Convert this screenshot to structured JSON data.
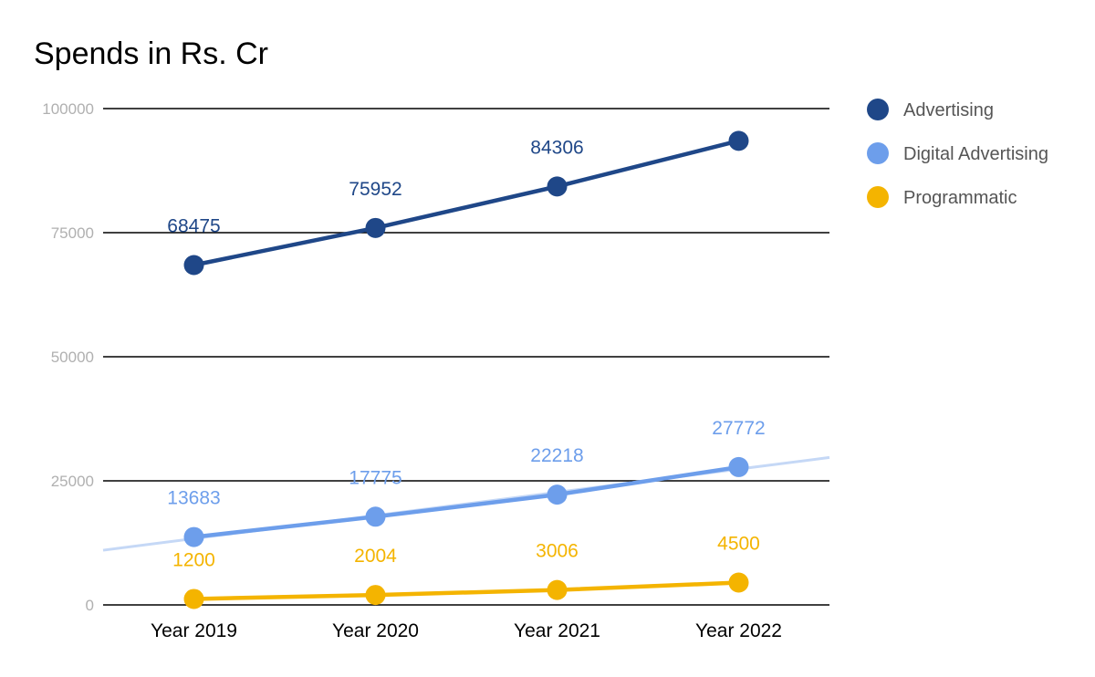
{
  "chart_data": {
    "type": "line",
    "title": "Spends in Rs. Cr",
    "xlabel": "",
    "ylabel": "",
    "categories": [
      "Year 2019",
      "Year 2020",
      "Year 2021",
      "Year 2022"
    ],
    "ylim": [
      0,
      100000
    ],
    "yticks": [
      "0",
      "25000",
      "50000",
      "75000",
      "100000"
    ],
    "ytick_values": [
      0,
      25000,
      50000,
      75000,
      100000
    ],
    "grid": true,
    "legend_position": "right",
    "series": [
      {
        "name": "Advertising",
        "color": "#1f4788",
        "values": [
          68475,
          75952,
          84306,
          93500
        ],
        "labels": [
          "68475",
          "75952",
          "84306",
          ""
        ]
      },
      {
        "name": "Digital Advertising",
        "color": "#6d9eeb",
        "trendline_color": "#c5d8f6",
        "trendline": true,
        "values": [
          13683,
          17775,
          22218,
          27772
        ],
        "labels": [
          "13683",
          "17775",
          "22218",
          "27772"
        ]
      },
      {
        "name": "Programmatic",
        "color": "#f4b400",
        "values": [
          1200,
          2004,
          3006,
          4500
        ],
        "labels": [
          "1200",
          "2004",
          "3006",
          "4500"
        ]
      }
    ]
  }
}
